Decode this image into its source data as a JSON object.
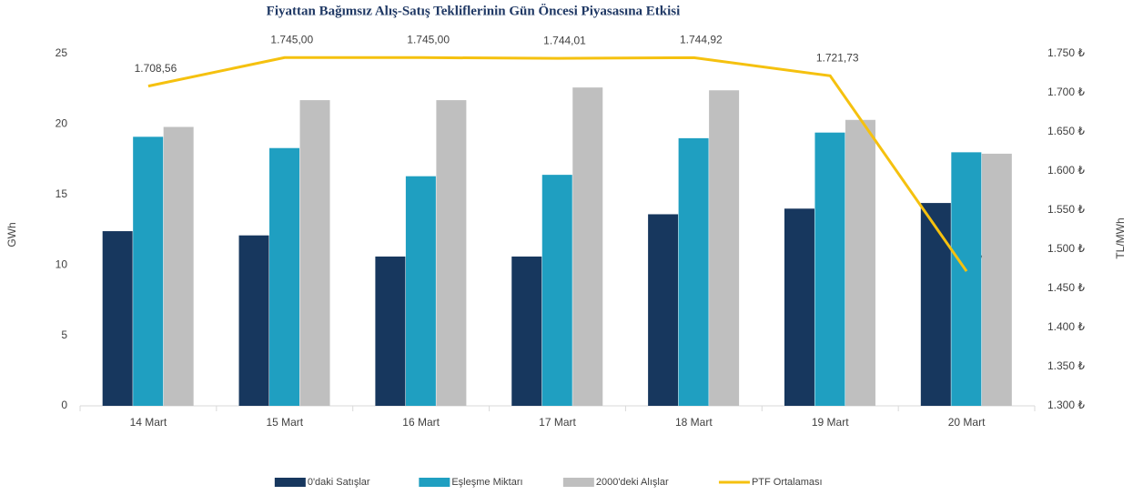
{
  "chart_data": {
    "type": "bar",
    "title": "Fiyattan Bağımsız Alış-Satış Tekliflerinin Gün Öncesi Piyasasına Etkisi",
    "y_label": "GWh",
    "y2_label": "TL/MWh",
    "categories": [
      "14 Mart",
      "15 Mart",
      "16 Mart",
      "17 Mart",
      "18 Mart",
      "19 Mart",
      "20 Mart"
    ],
    "series": [
      {
        "name": "0'daki Satışlar",
        "type": "bar",
        "color": "#17375e",
        "values": [
          12.4,
          12.1,
          10.6,
          10.6,
          13.6,
          14.0,
          14.4
        ]
      },
      {
        "name": "Eşleşme Miktarı",
        "type": "bar",
        "color": "#1f9fc1",
        "values": [
          19.1,
          18.3,
          16.3,
          16.4,
          19.0,
          19.4,
          18.0
        ]
      },
      {
        "name": "2000'deki Alışlar",
        "type": "bar",
        "color": "#bfbfbf",
        "values": [
          19.8,
          21.7,
          21.7,
          22.6,
          22.4,
          20.3,
          17.9
        ]
      },
      {
        "name": "PTF Ortalaması",
        "type": "line",
        "axis": "y2",
        "color": "#f5c10f",
        "values": [
          1708.56,
          1745.0,
          1745.0,
          1744.01,
          1744.92,
          1721.73,
          1472.02
        ],
        "value_labels": [
          "1.708,56",
          "1.745,00",
          "1.745,00",
          "1.744,01",
          "1.744,92",
          "1.721,73",
          "1.472,02"
        ]
      }
    ],
    "ylim": [
      0,
      25
    ],
    "yticks": [
      0,
      5,
      10,
      15,
      20,
      25
    ],
    "y2lim": [
      1300,
      1750
    ],
    "y2ticks": [
      {
        "value": 1300,
        "label": "1.300 ₺"
      },
      {
        "value": 1350,
        "label": "1.350 ₺"
      },
      {
        "value": 1400,
        "label": "1.400 ₺"
      },
      {
        "value": 1450,
        "label": "1.450 ₺"
      },
      {
        "value": 1500,
        "label": "1.500 ₺"
      },
      {
        "value": 1550,
        "label": "1.550 ₺"
      },
      {
        "value": 1600,
        "label": "1.600 ₺"
      },
      {
        "value": 1650,
        "label": "1.650 ₺"
      },
      {
        "value": 1700,
        "label": "1.700 ₺"
      },
      {
        "value": 1750,
        "label": "1.750 ₺"
      }
    ],
    "grid": false,
    "legend": "bottom"
  }
}
